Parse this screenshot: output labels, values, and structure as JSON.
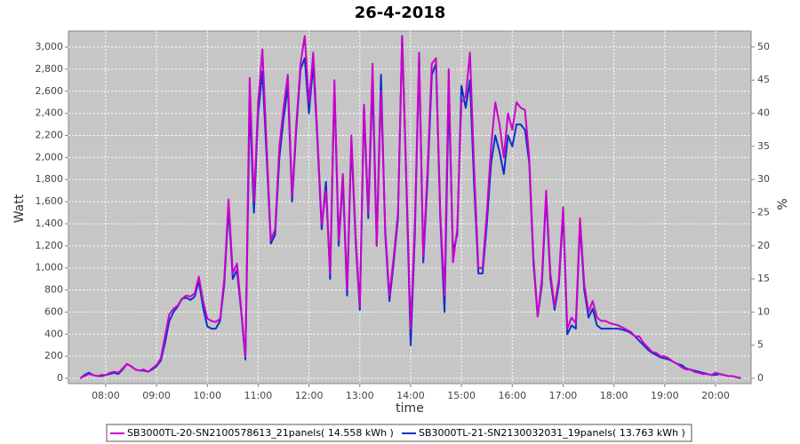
{
  "chart_data": {
    "type": "line",
    "title": "26-4-2018",
    "x_label": "time",
    "y_label": "Watt",
    "y2_label": "%",
    "x": [
      "07:30",
      "07:35",
      "07:40",
      "07:45",
      "07:50",
      "07:55",
      "08:00",
      "08:05",
      "08:10",
      "08:15",
      "08:20",
      "08:25",
      "08:30",
      "08:35",
      "08:40",
      "08:45",
      "08:50",
      "08:55",
      "09:00",
      "09:05",
      "09:10",
      "09:15",
      "09:20",
      "09:25",
      "09:30",
      "09:35",
      "09:40",
      "09:45",
      "09:50",
      "09:55",
      "10:00",
      "10:05",
      "10:10",
      "10:15",
      "10:20",
      "10:25",
      "10:30",
      "10:35",
      "10:40",
      "10:45",
      "10:50",
      "10:55",
      "11:00",
      "11:05",
      "11:10",
      "11:15",
      "11:20",
      "11:25",
      "11:30",
      "11:35",
      "11:40",
      "11:45",
      "11:50",
      "11:55",
      "12:00",
      "12:05",
      "12:10",
      "12:15",
      "12:20",
      "12:25",
      "12:30",
      "12:35",
      "12:40",
      "12:45",
      "12:50",
      "12:55",
      "13:00",
      "13:05",
      "13:10",
      "13:15",
      "13:20",
      "13:25",
      "13:30",
      "13:35",
      "13:40",
      "13:45",
      "13:50",
      "13:55",
      "14:00",
      "14:05",
      "14:10",
      "14:15",
      "14:20",
      "14:25",
      "14:30",
      "14:35",
      "14:40",
      "14:45",
      "14:50",
      "14:55",
      "15:00",
      "15:05",
      "15:10",
      "15:15",
      "15:20",
      "15:25",
      "15:30",
      "15:35",
      "15:40",
      "15:45",
      "15:50",
      "15:55",
      "16:00",
      "16:05",
      "16:10",
      "16:15",
      "16:20",
      "16:25",
      "16:30",
      "16:35",
      "16:40",
      "16:45",
      "16:50",
      "16:55",
      "17:00",
      "17:05",
      "17:10",
      "17:15",
      "17:20",
      "17:25",
      "17:30",
      "17:35",
      "17:40",
      "17:45",
      "17:50",
      "17:55",
      "18:00",
      "18:05",
      "18:10",
      "18:15",
      "18:20",
      "18:25",
      "18:30",
      "18:35",
      "18:40",
      "18:45",
      "18:50",
      "18:55",
      "19:00",
      "19:05",
      "19:10",
      "19:15",
      "19:20",
      "19:25",
      "19:30",
      "19:35",
      "19:40",
      "19:45",
      "19:50",
      "19:55",
      "20:00",
      "20:05",
      "20:10",
      "20:15",
      "20:20",
      "20:25",
      "20:30"
    ],
    "series": [
      {
        "name": "SB3000TL-20-SN2100578613_21panels( 14.558 kWh )",
        "color": "#cc00cc",
        "values": [
          0,
          20,
          40,
          30,
          20,
          30,
          30,
          50,
          60,
          50,
          90,
          130,
          110,
          80,
          70,
          80,
          60,
          90,
          120,
          180,
          380,
          580,
          630,
          660,
          720,
          750,
          740,
          770,
          920,
          700,
          540,
          520,
          510,
          540,
          900,
          1620,
          950,
          1040,
          620,
          200,
          2720,
          1600,
          2500,
          2980,
          2100,
          1250,
          1350,
          2100,
          2450,
          2750,
          1650,
          2300,
          2850,
          3100,
          2500,
          2950,
          2200,
          1400,
          1700,
          950,
          2700,
          1250,
          1850,
          800,
          2200,
          1300,
          650,
          2480,
          1500,
          2850,
          1200,
          2600,
          1350,
          750,
          1100,
          1500,
          3100,
          1800,
          450,
          1400,
          2950,
          1100,
          1900,
          2850,
          2900,
          1500,
          750,
          2800,
          1050,
          1350,
          2500,
          2550,
          2950,
          1900,
          1000,
          1000,
          1500,
          2100,
          2500,
          2300,
          2000,
          2400,
          2250,
          2500,
          2450,
          2430,
          2000,
          1100,
          560,
          900,
          1700,
          950,
          650,
          900,
          1550,
          450,
          550,
          500,
          1450,
          850,
          600,
          700,
          550,
          520,
          520,
          500,
          490,
          480,
          460,
          440,
          420,
          380,
          380,
          320,
          280,
          240,
          230,
          200,
          200,
          180,
          150,
          130,
          100,
          80,
          80,
          60,
          50,
          40,
          40,
          30,
          50,
          40,
          30,
          20,
          20,
          10,
          0
        ]
      },
      {
        "name": "SB3000TL-21-SN2130032031_19panels( 13.763 kWh )",
        "color": "#0a32c8",
        "values": [
          0,
          30,
          50,
          30,
          20,
          20,
          30,
          40,
          50,
          40,
          80,
          130,
          110,
          80,
          70,
          70,
          60,
          80,
          110,
          160,
          320,
          520,
          600,
          650,
          720,
          730,
          710,
          740,
          880,
          640,
          470,
          450,
          450,
          520,
          850,
          1550,
          900,
          980,
          600,
          170,
          2500,
          1500,
          2400,
          2780,
          2000,
          1220,
          1300,
          2000,
          2350,
          2650,
          1600,
          2250,
          2800,
          2900,
          2400,
          2850,
          2150,
          1350,
          1780,
          900,
          2650,
          1200,
          1800,
          750,
          2150,
          1250,
          620,
          2450,
          1450,
          2700,
          1200,
          2750,
          1300,
          700,
          1050,
          1450,
          3100,
          1750,
          300,
          1300,
          2900,
          1050,
          1800,
          2750,
          2850,
          1450,
          600,
          2600,
          1150,
          1300,
          2650,
          2450,
          2700,
          1750,
          950,
          950,
          1400,
          1950,
          2200,
          2050,
          1850,
          2200,
          2100,
          2300,
          2300,
          2250,
          1950,
          1050,
          560,
          850,
          1650,
          900,
          620,
          850,
          1500,
          400,
          480,
          450,
          1400,
          800,
          550,
          630,
          480,
          450,
          450,
          450,
          450,
          450,
          440,
          430,
          410,
          380,
          340,
          300,
          260,
          230,
          210,
          190,
          180,
          170,
          150,
          130,
          120,
          90,
          80,
          70,
          60,
          50,
          40,
          30,
          30,
          40,
          30,
          20,
          20,
          10,
          0
        ]
      }
    ],
    "xlim": [
      "07:16",
      "20:42"
    ],
    "xticks": [
      "08:00",
      "09:00",
      "10:00",
      "11:00",
      "12:00",
      "13:00",
      "14:00",
      "15:00",
      "16:00",
      "17:00",
      "18:00",
      "19:00",
      "20:00"
    ],
    "ylim": [
      -48,
      3145
    ],
    "yticks": [
      0,
      200,
      400,
      600,
      800,
      {
        "value": 1000,
        "label": "1,000"
      },
      {
        "value": 1200,
        "label": "1,200"
      },
      {
        "value": 1400,
        "label": "1,400"
      },
      {
        "value": 1600,
        "label": "1,600"
      },
      {
        "value": 1800,
        "label": "1,800"
      },
      {
        "value": 2000,
        "label": "2,000"
      },
      {
        "value": 2200,
        "label": "2,200"
      },
      {
        "value": 2400,
        "label": "2,400"
      },
      {
        "value": 2600,
        "label": "2,600"
      },
      {
        "value": 2800,
        "label": "2,800"
      },
      {
        "value": 3000,
        "label": "3,000"
      }
    ],
    "y2lim": [
      -0.8,
      52.4
    ],
    "y2ticks": [
      0,
      5,
      10,
      15,
      20,
      25,
      30,
      35,
      40,
      45,
      50
    ],
    "grid": true,
    "legend": "bottom"
  }
}
